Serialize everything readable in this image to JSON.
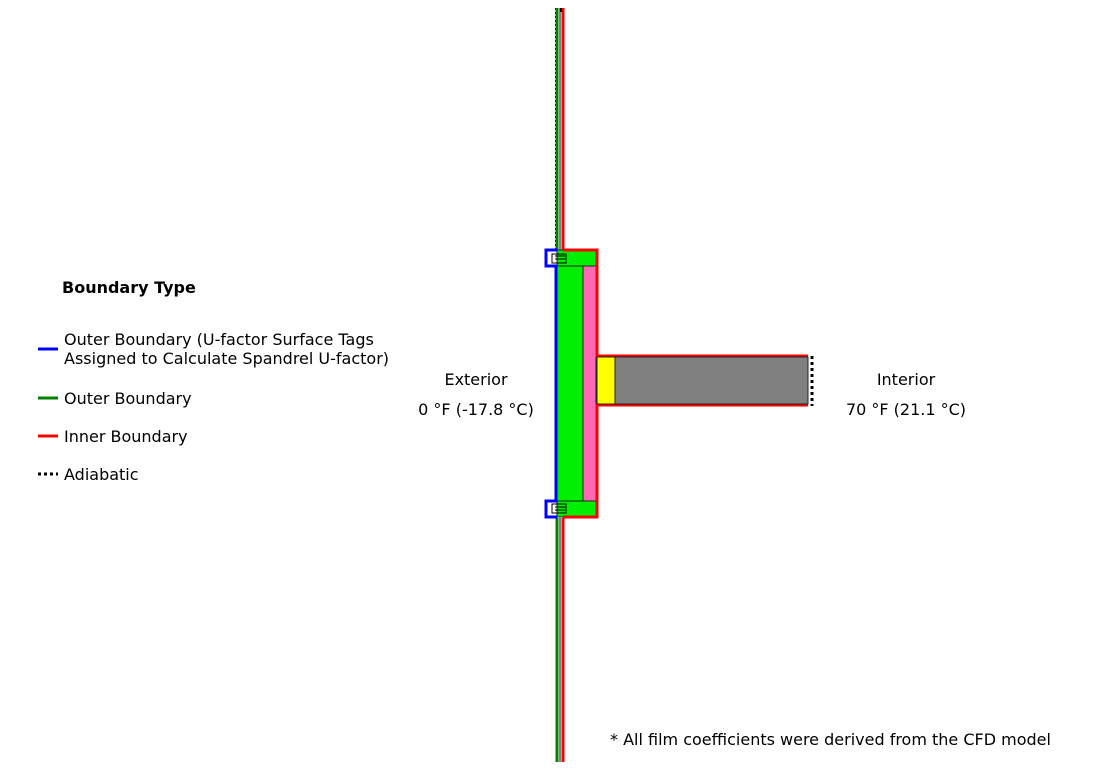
{
  "legend": {
    "title": "Boundary Type",
    "items": [
      {
        "label": "Outer Boundary (U-factor Surface Tags\nAssigned to Calculate Spandrel U-factor)",
        "color": "#0000ff",
        "style": "solid"
      },
      {
        "label": "Outer Boundary",
        "color": "#008000",
        "style": "solid"
      },
      {
        "label": "Inner Boundary",
        "color": "#ff0000",
        "style": "solid"
      },
      {
        "label": "Adiabatic",
        "color": "#000000",
        "style": "dotted"
      }
    ]
  },
  "exterior": {
    "name": "Exterior",
    "temperature": "0 °F (-17.8 °C)"
  },
  "interior": {
    "name": "Interior",
    "temperature": "70 °F (21.1 °C)"
  },
  "footnote": "* All film coefficients were derived from the CFD model",
  "colors": {
    "insulation": "#00ee00",
    "membrane": "#ff69b4",
    "slab": "#808080",
    "edge_insulation": "#ffff00"
  }
}
